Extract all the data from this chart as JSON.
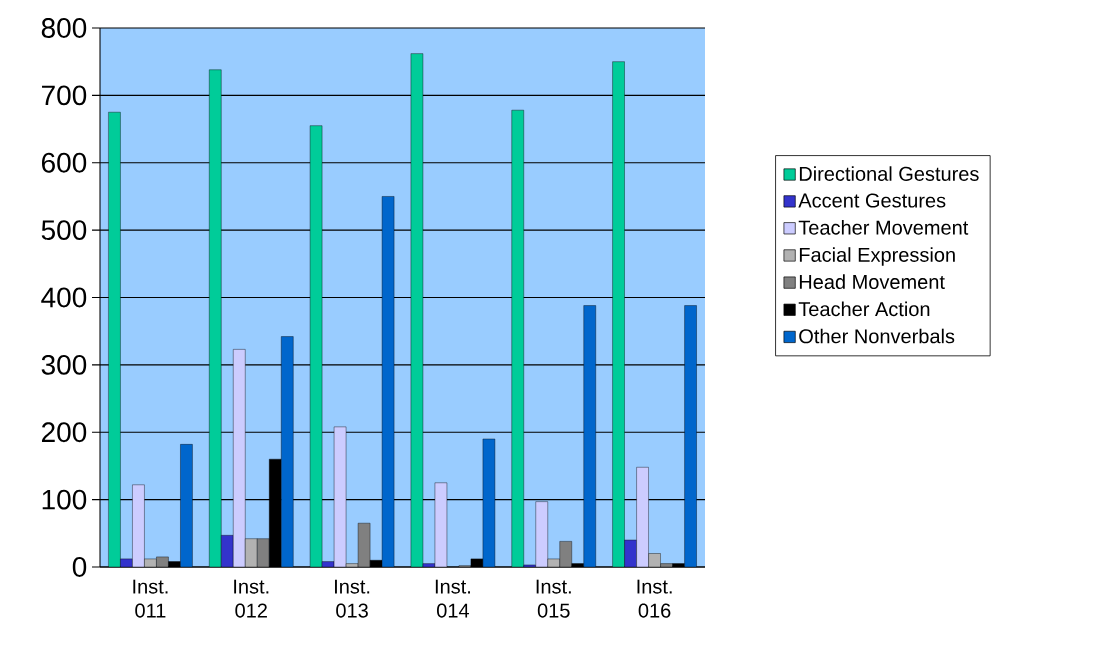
{
  "chart_data": {
    "type": "bar",
    "categories": [
      "Inst. 011",
      "Inst. 012",
      "Inst. 013",
      "Inst. 014",
      "Inst. 015",
      "Inst. 016"
    ],
    "series": [
      {
        "name": "Directional Gestures",
        "color": "#00cc99",
        "values": [
          675,
          738,
          655,
          762,
          678,
          750
        ]
      },
      {
        "name": "Accent Gestures",
        "color": "#3333cc",
        "values": [
          12,
          47,
          8,
          5,
          3,
          40
        ]
      },
      {
        "name": "Teacher Movement",
        "color": "#ccccff",
        "values": [
          122,
          323,
          208,
          125,
          97,
          148
        ]
      },
      {
        "name": "Facial Expression",
        "color": "#b2b2b2",
        "values": [
          12,
          42,
          5,
          null,
          12,
          20
        ]
      },
      {
        "name": "Head Movement",
        "color": "#808080",
        "values": [
          15,
          42,
          65,
          2,
          38,
          5
        ]
      },
      {
        "name": "Teacher Action",
        "color": "#000000",
        "values": [
          8,
          160,
          10,
          12,
          5,
          5
        ]
      },
      {
        "name": "Other Nonverbals",
        "color": "#0066cc",
        "values": [
          182,
          342,
          550,
          190,
          388,
          388
        ]
      }
    ],
    "ylim": [
      0,
      800
    ],
    "yticks": [
      0,
      100,
      200,
      300,
      400,
      500,
      600,
      700,
      800
    ],
    "grid": "y",
    "legend": "right"
  }
}
